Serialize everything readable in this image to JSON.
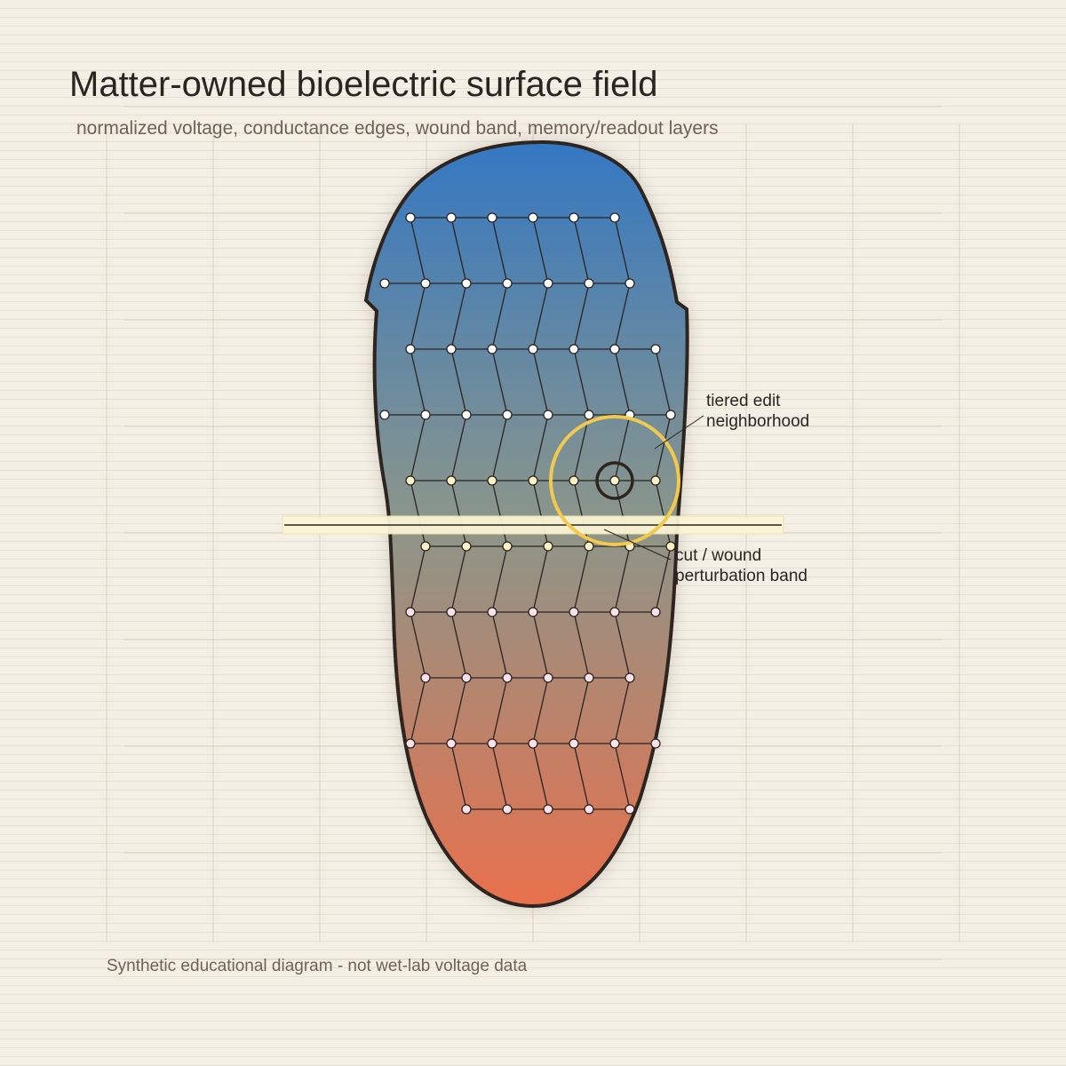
{
  "header": {
    "title": "Matter-owned bioelectric surface field",
    "subtitle": "normalized voltage, conductance edges, wound band, memory/readout layers"
  },
  "annotations": [
    {
      "lines": [
        "tiered edit",
        "neighborhood"
      ]
    },
    {
      "lines": [
        "cut / wound",
        "perturbation band"
      ]
    }
  ],
  "footer": "Synthetic educational diagram - not wet-lab voltage data"
}
